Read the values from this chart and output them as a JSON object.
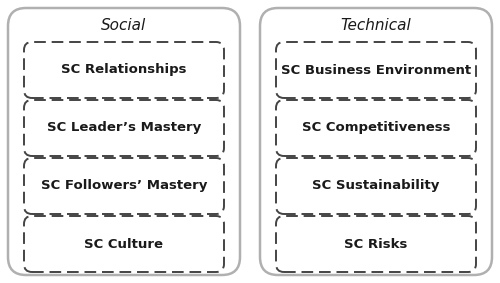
{
  "title_social": "Social",
  "title_technical": "Technical",
  "social_items": [
    "SC Relationships",
    "SC Leader’s Mastery",
    "SC Followers’ Mastery",
    "SC Culture"
  ],
  "technical_items": [
    "SC Business Environment",
    "SC Competitiveness",
    "SC Sustainability",
    "SC Risks"
  ],
  "outer_box_color": "#b0b0b0",
  "inner_box_color": "#555555",
  "text_color": "#1a1a1a",
  "bg_color": "#ffffff",
  "title_fontsize": 11,
  "item_fontsize": 9.5
}
